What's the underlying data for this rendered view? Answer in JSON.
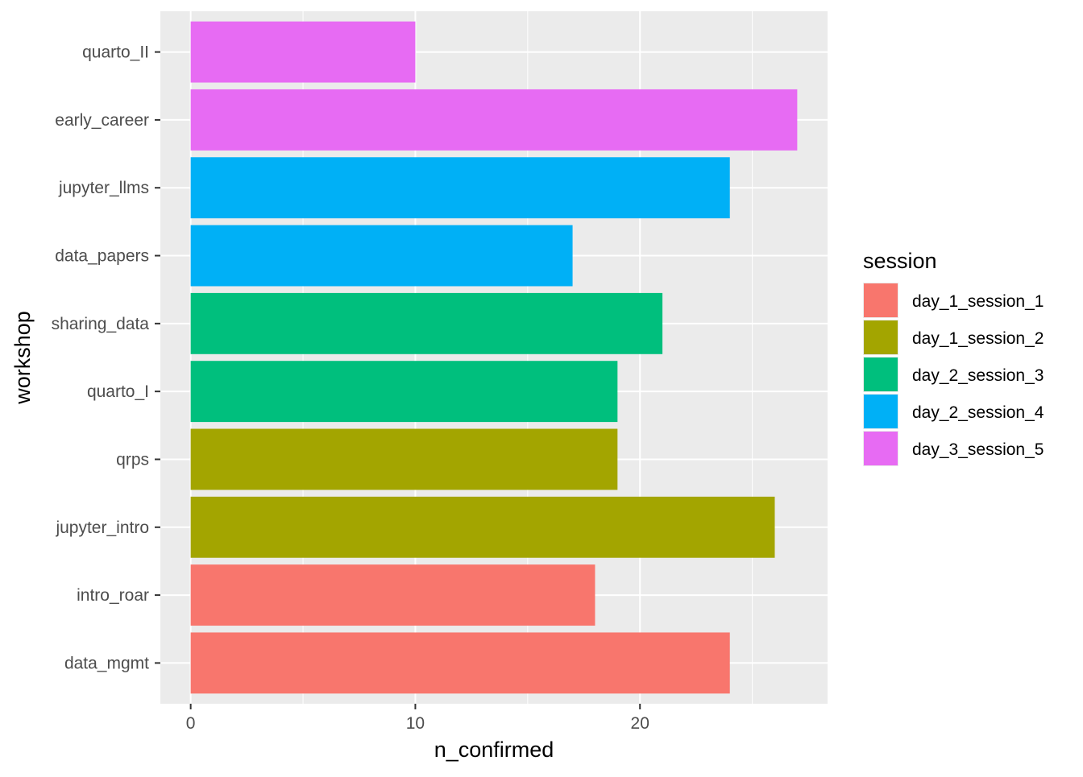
{
  "chart_data": {
    "type": "bar",
    "orientation": "horizontal",
    "title": "",
    "xlabel": "n_confirmed",
    "ylabel": "workshop",
    "xlim": [
      -1.35,
      28.35
    ],
    "x_ticks": [
      0,
      10,
      20
    ],
    "x_minor_ticks": [
      5,
      15,
      25
    ],
    "grid": true,
    "categories": [
      "data_mgmt",
      "intro_roar",
      "jupyter_intro",
      "qrps",
      "quarto_I",
      "sharing_data",
      "data_papers",
      "jupyter_llms",
      "early_career",
      "quarto_II"
    ],
    "values": [
      24,
      18,
      26,
      19,
      19,
      21,
      17,
      24,
      27,
      10
    ],
    "session": [
      "day_1_session_1",
      "day_1_session_1",
      "day_1_session_2",
      "day_1_session_2",
      "day_2_session_3",
      "day_2_session_3",
      "day_2_session_4",
      "day_2_session_4",
      "day_3_session_5",
      "day_3_session_5"
    ],
    "legend": {
      "title": "session",
      "placement": "right",
      "entries": [
        {
          "label": "day_1_session_1",
          "color": "#F8766D"
        },
        {
          "label": "day_1_session_2",
          "color": "#A3A500"
        },
        {
          "label": "day_2_session_3",
          "color": "#00BF7D"
        },
        {
          "label": "day_2_session_4",
          "color": "#00B0F6"
        },
        {
          "label": "day_3_session_5",
          "color": "#E76BF3"
        }
      ]
    },
    "colors": {
      "panel_background": "#EBEBEB",
      "grid": "#FFFFFF",
      "axis_text": "#4D4D4D",
      "axis_title": "#000000"
    }
  }
}
